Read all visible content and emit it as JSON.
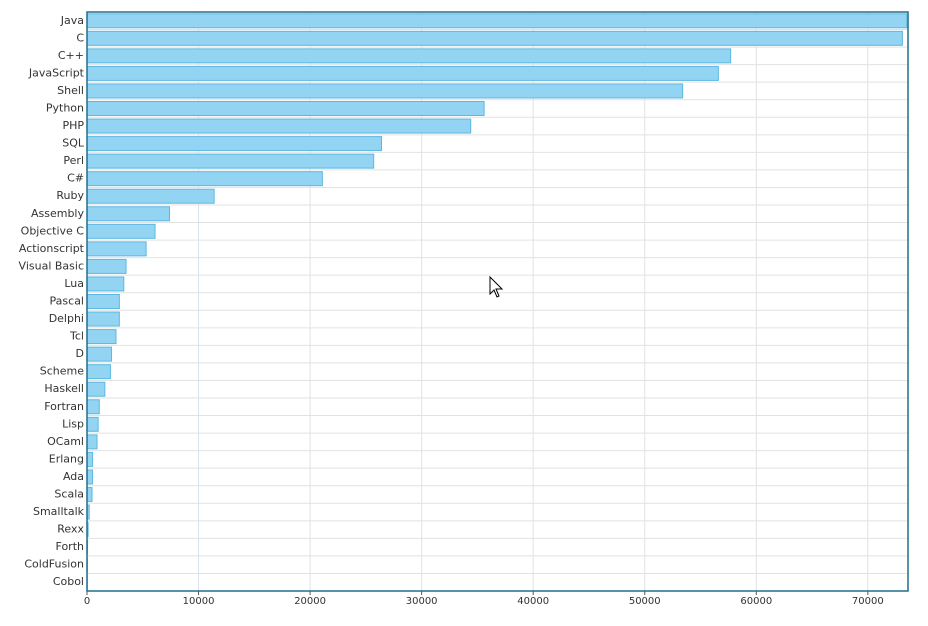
{
  "chart_data": {
    "type": "bar",
    "orientation": "horizontal",
    "categories": [
      "Java",
      "C",
      "C++",
      "JavaScript",
      "Shell",
      "Python",
      "PHP",
      "SQL",
      "Perl",
      "C#",
      "Ruby",
      "Assembly",
      "Objective C",
      "Actionscript",
      "Visual Basic",
      "Lua",
      "Pascal",
      "Delphi",
      "Tcl",
      "D",
      "Scheme",
      "Haskell",
      "Fortran",
      "Lisp",
      "OCaml",
      "Erlang",
      "Ada",
      "Scala",
      "Smalltalk",
      "Rexx",
      "Forth",
      "ColdFusion",
      "Cobol"
    ],
    "values": [
      73500,
      73100,
      57700,
      56600,
      53400,
      35600,
      34400,
      26400,
      25700,
      21100,
      11400,
      7400,
      6100,
      5300,
      3500,
      3300,
      2900,
      2900,
      2600,
      2200,
      2100,
      1600,
      1100,
      1000,
      900,
      500,
      500,
      450,
      200,
      100,
      50,
      30,
      20
    ],
    "color": "#93d4f2",
    "xlim": [
      0,
      73600
    ],
    "xticks": [
      0,
      10000,
      20000,
      30000,
      40000,
      50000,
      60000,
      70000
    ],
    "grid": true
  }
}
